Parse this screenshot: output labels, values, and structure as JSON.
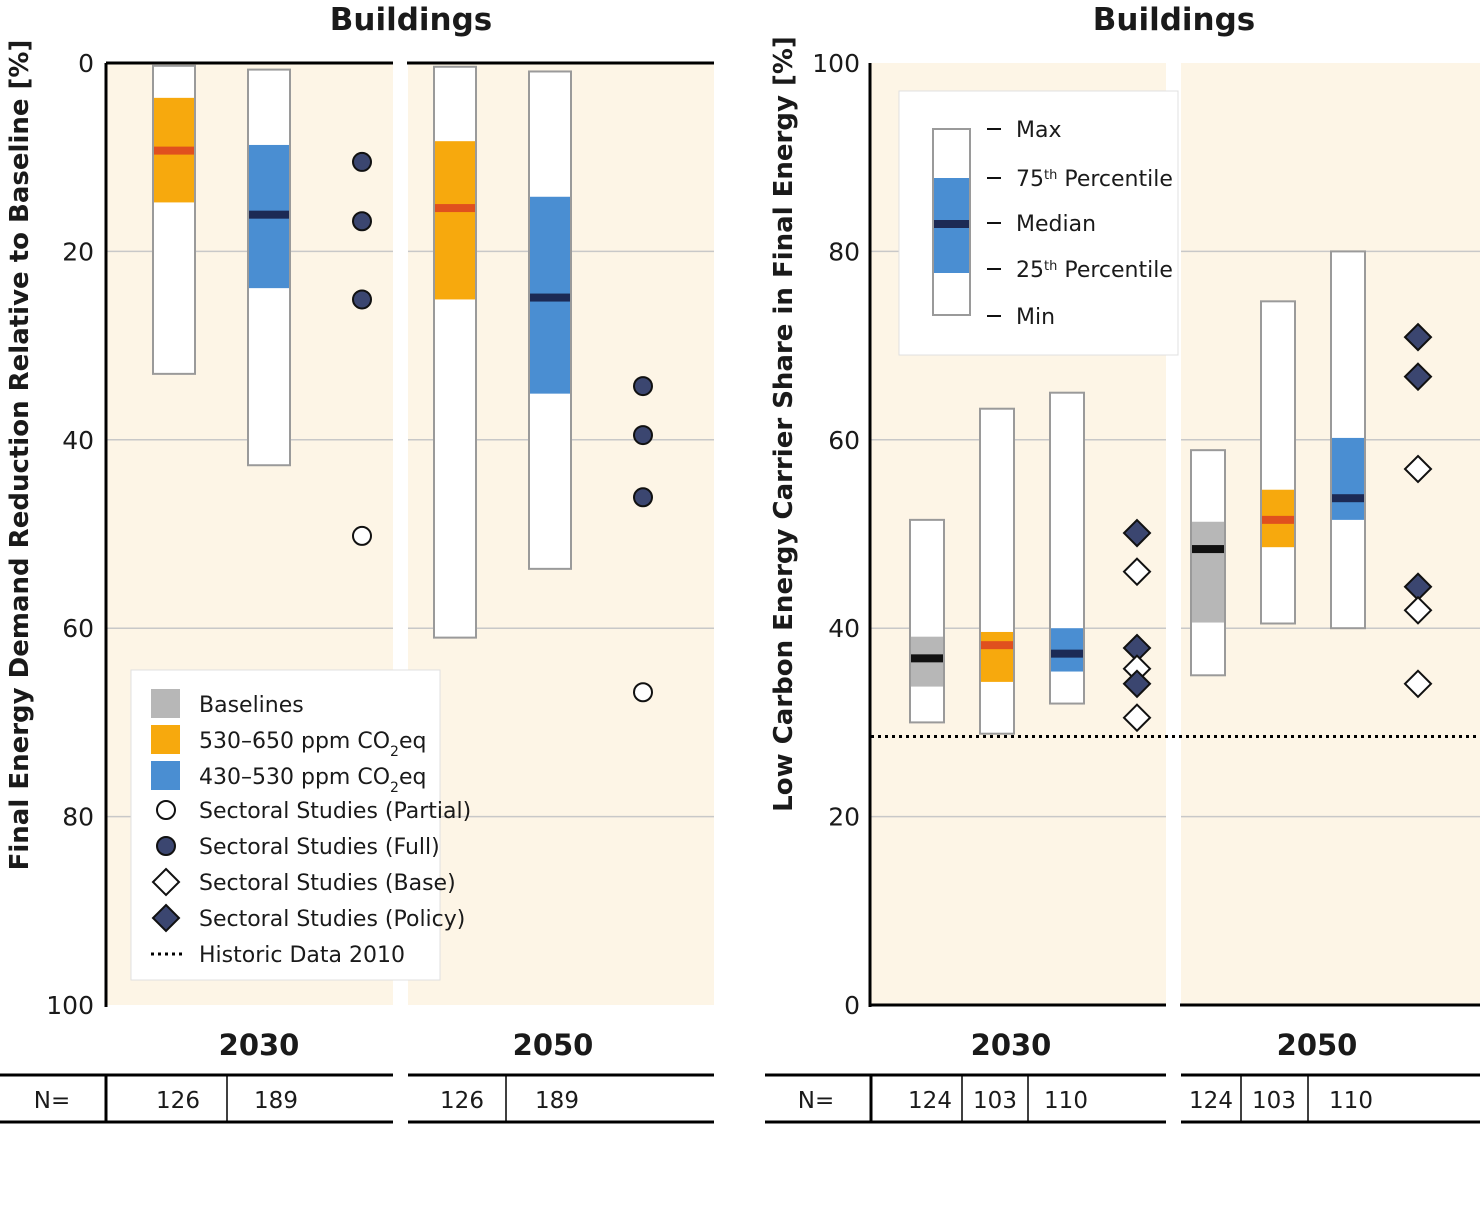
{
  "colors": {
    "background": "#fdf5e6",
    "baseline": "#b7b7b7",
    "ppm530_650": "#f7a90d",
    "ppm430_530": "#4a8ed2",
    "median_baseline": "#111111",
    "median_530_650": "#e0501e",
    "median_430_530": "#1c2a55",
    "marker_fill": "#3b4670",
    "whisker_box": "#ffffff",
    "grid": "#c8c8c8"
  },
  "chart_data": [
    {
      "type": "box",
      "title": "Buildings",
      "ylabel": "Final Energy Demand Reduction Relative to Baseline [%]",
      "ylim": [
        0,
        100
      ],
      "y_inverted": true,
      "yticks": [
        "0",
        "20",
        "40",
        "60",
        "80",
        "100"
      ],
      "groups": [
        {
          "year": "2030",
          "n_values": [
            "126",
            "189"
          ],
          "boxes": [
            {
              "series": "530–650 ppm CO2eq",
              "min": 0.3,
              "q1": 3.7,
              "median": 9.3,
              "q3": 14.8,
              "max": 33
            },
            {
              "series": "430–530 ppm CO2eq",
              "min": 0.7,
              "q1": 8.7,
              "median": 16.1,
              "q3": 23.9,
              "max": 42.7
            }
          ],
          "studies": [
            {
              "type": "full",
              "value": 10.5
            },
            {
              "type": "full",
              "value": 16.8
            },
            {
              "type": "full",
              "value": 25.1
            },
            {
              "type": "partial",
              "value": 50.2
            }
          ]
        },
        {
          "year": "2050",
          "n_values": [
            "126",
            "189"
          ],
          "boxes": [
            {
              "series": "530–650 ppm CO2eq",
              "min": 0.4,
              "q1": 8.3,
              "median": 15.4,
              "q3": 25.1,
              "max": 61
            },
            {
              "series": "430–530 ppm CO2eq",
              "min": 0.9,
              "q1": 14.2,
              "median": 24.9,
              "q3": 35.1,
              "max": 53.7
            }
          ],
          "studies": [
            {
              "type": "full",
              "value": 34.3
            },
            {
              "type": "full",
              "value": 39.5
            },
            {
              "type": "full",
              "value": 46.1
            },
            {
              "type": "partial",
              "value": 66.8
            }
          ]
        }
      ]
    },
    {
      "type": "box",
      "title": "Buildings",
      "ylabel": "Low Carbon Energy Carrier Share in Final Energy [%]",
      "ylim": [
        0,
        100
      ],
      "yticks": [
        "0",
        "20",
        "40",
        "60",
        "80",
        "100"
      ],
      "historic_2010": 28.5,
      "groups": [
        {
          "year": "2030",
          "n_values": [
            "124",
            "103",
            "110"
          ],
          "boxes": [
            {
              "series": "Baselines",
              "min": 30,
              "q1": 33.8,
              "median": 36.8,
              "q3": 39.1,
              "max": 51.5
            },
            {
              "series": "530–650 ppm CO2eq",
              "min": 28.8,
              "q1": 34.3,
              "median": 38.2,
              "q3": 39.6,
              "max": 63.3
            },
            {
              "series": "430–530 ppm CO2eq",
              "min": 32,
              "q1": 35.4,
              "median": 37.3,
              "q3": 40,
              "max": 65
            }
          ],
          "studies": [
            {
              "type": "policy",
              "value": 50.1
            },
            {
              "type": "base",
              "value": 46
            },
            {
              "type": "policy",
              "value": 37.9
            },
            {
              "type": "base",
              "value": 35.7
            },
            {
              "type": "policy",
              "value": 34.1
            },
            {
              "type": "base",
              "value": 30.5
            }
          ]
        },
        {
          "year": "2050",
          "n_values": [
            "124",
            "103",
            "110"
          ],
          "boxes": [
            {
              "series": "Baselines",
              "min": 35,
              "q1": 40.6,
              "median": 48.4,
              "q3": 51.3,
              "max": 58.9
            },
            {
              "series": "530–650 ppm CO2eq",
              "min": 40.5,
              "q1": 48.6,
              "median": 51.5,
              "q3": 54.7,
              "max": 74.7
            },
            {
              "series": "430–530 ppm CO2eq",
              "min": 40,
              "q1": 51.5,
              "median": 53.8,
              "q3": 60.2,
              "max": 80
            }
          ],
          "studies": [
            {
              "type": "policy",
              "value": 70.9
            },
            {
              "type": "policy",
              "value": 66.7
            },
            {
              "type": "base",
              "value": 56.9
            },
            {
              "type": "policy",
              "value": 44.4
            },
            {
              "type": "base",
              "value": 41.9
            },
            {
              "type": "base",
              "value": 34.1
            }
          ]
        }
      ]
    }
  ],
  "n_label": "N=",
  "legend_series": {
    "items": [
      {
        "key": "baseline",
        "label": "Baselines"
      },
      {
        "key": "ppm530_650",
        "label": "530–650 ppm CO",
        "sub": "2",
        "suffix": "eq"
      },
      {
        "key": "ppm430_530",
        "label": "430–530 ppm CO",
        "sub": "2",
        "suffix": "eq"
      },
      {
        "key": "partial",
        "label": "Sectoral Studies (Partial)"
      },
      {
        "key": "full",
        "label": "Sectoral Studies (Full)"
      },
      {
        "key": "base",
        "label": "Sectoral Studies (Base)"
      },
      {
        "key": "policy",
        "label": "Sectoral Studies (Policy)"
      },
      {
        "key": "historic",
        "label": "Historic Data 2010"
      }
    ]
  },
  "legend_stats": {
    "max": "Max",
    "p75": "75",
    "p75_sup": "th",
    "p75_suffix": " Percentile",
    "median": "Median",
    "p25": "25",
    "p25_sup": "th",
    "p25_suffix": " Percentile",
    "min": "Min"
  }
}
